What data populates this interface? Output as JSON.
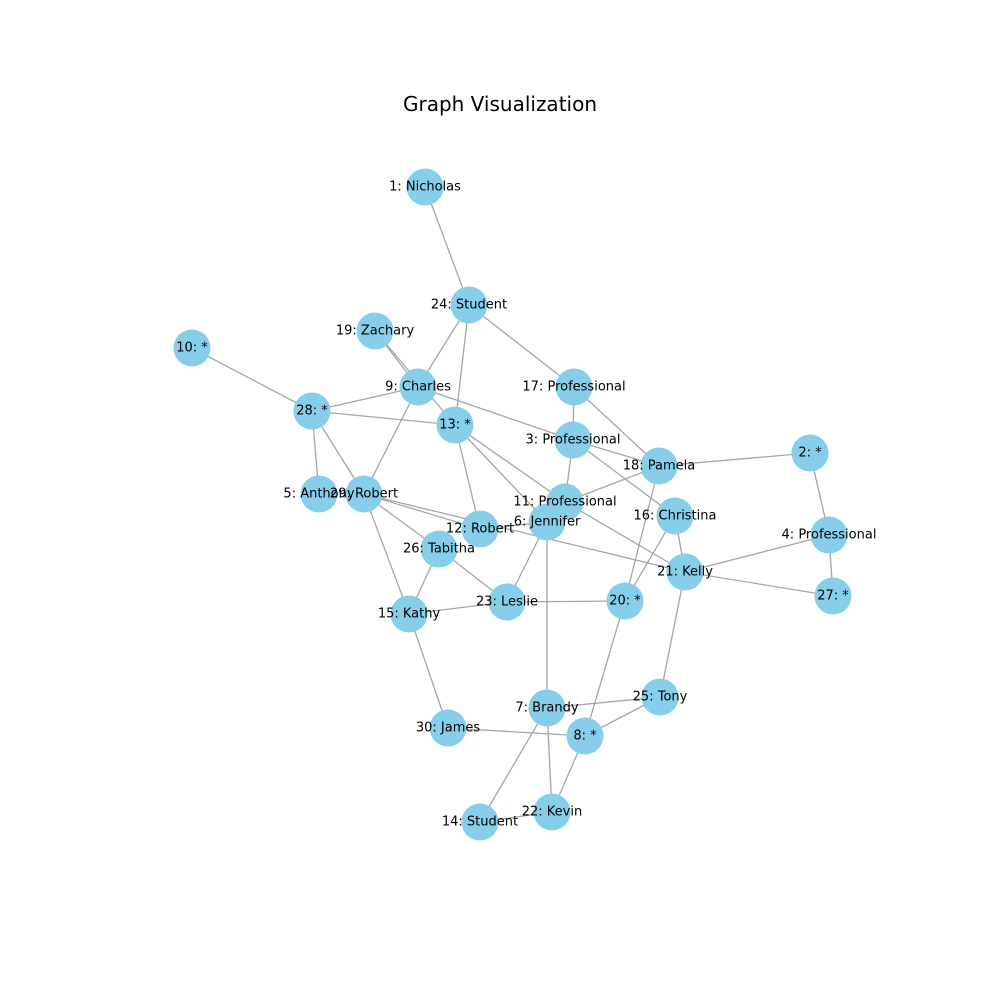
{
  "title": "Graph Visualization",
  "colors": {
    "node": "#87ceeb",
    "edge": "#a6a6a6",
    "background": "#ffffff"
  },
  "nodes": [
    {
      "id": 1,
      "label": "1: Nicholas"
    },
    {
      "id": 2,
      "label": "2: *"
    },
    {
      "id": 3,
      "label": "3: Professional"
    },
    {
      "id": 4,
      "label": "4: Professional"
    },
    {
      "id": 5,
      "label": "5: Anthony"
    },
    {
      "id": 6,
      "label": "6: Jennifer"
    },
    {
      "id": 7,
      "label": "7: Brandy"
    },
    {
      "id": 8,
      "label": "8: *"
    },
    {
      "id": 9,
      "label": "9: Charles"
    },
    {
      "id": 10,
      "label": "10: *"
    },
    {
      "id": 11,
      "label": "11: Professional"
    },
    {
      "id": 12,
      "label": "12: Robert"
    },
    {
      "id": 13,
      "label": "13: *"
    },
    {
      "id": 14,
      "label": "14: Student"
    },
    {
      "id": 15,
      "label": "15: Kathy"
    },
    {
      "id": 16,
      "label": "16: Christina"
    },
    {
      "id": 17,
      "label": "17: Professional"
    },
    {
      "id": 18,
      "label": "18: Pamela"
    },
    {
      "id": 19,
      "label": "19: Zachary"
    },
    {
      "id": 20,
      "label": "20: *"
    },
    {
      "id": 21,
      "label": "21: Kelly"
    },
    {
      "id": 22,
      "label": "22: Kevin"
    },
    {
      "id": 23,
      "label": "23: Leslie"
    },
    {
      "id": 24,
      "label": "24: Student"
    },
    {
      "id": 25,
      "label": "25: Tony"
    },
    {
      "id": 26,
      "label": "26: Tabitha"
    },
    {
      "id": 27,
      "label": "27: *"
    },
    {
      "id": 28,
      "label": "28: *"
    },
    {
      "id": 29,
      "label": "29: Robert"
    },
    {
      "id": 30,
      "label": "30: James"
    }
  ],
  "edges": [
    [
      1,
      24
    ],
    [
      24,
      9
    ],
    [
      24,
      13
    ],
    [
      24,
      17
    ],
    [
      19,
      9
    ],
    [
      19,
      13
    ],
    [
      10,
      28
    ],
    [
      28,
      9
    ],
    [
      28,
      13
    ],
    [
      28,
      5
    ],
    [
      28,
      29
    ],
    [
      9,
      29
    ],
    [
      9,
      3
    ],
    [
      13,
      12
    ],
    [
      13,
      11
    ],
    [
      13,
      6
    ],
    [
      17,
      3
    ],
    [
      17,
      18
    ],
    [
      3,
      11
    ],
    [
      3,
      18
    ],
    [
      3,
      16
    ],
    [
      18,
      2
    ],
    [
      18,
      11
    ],
    [
      18,
      20
    ],
    [
      2,
      4
    ],
    [
      4,
      21
    ],
    [
      4,
      27
    ],
    [
      16,
      21
    ],
    [
      16,
      20
    ],
    [
      21,
      27
    ],
    [
      21,
      25
    ],
    [
      29,
      12
    ],
    [
      29,
      26
    ],
    [
      29,
      15
    ],
    [
      29,
      21
    ],
    [
      26,
      23
    ],
    [
      26,
      15
    ],
    [
      6,
      12
    ],
    [
      6,
      23
    ],
    [
      6,
      7
    ],
    [
      11,
      21
    ],
    [
      23,
      15
    ],
    [
      23,
      20
    ],
    [
      20,
      8
    ],
    [
      15,
      30
    ],
    [
      30,
      8
    ],
    [
      7,
      25
    ],
    [
      7,
      22
    ],
    [
      7,
      14
    ],
    [
      25,
      8
    ],
    [
      8,
      22
    ],
    [
      14,
      22
    ]
  ]
}
